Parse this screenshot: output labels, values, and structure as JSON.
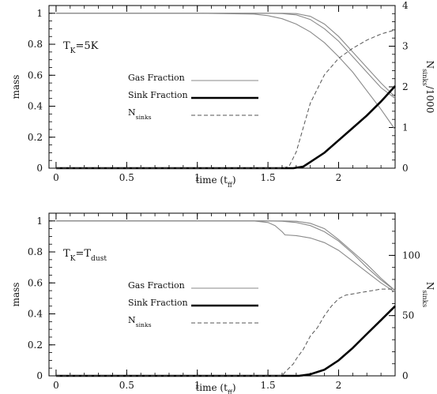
{
  "chart_data": [
    {
      "type": "line",
      "annotation": "T_K=5K",
      "xlabel": "time (t_ff)",
      "ylabel": "mass",
      "y2label": "N_sinks/1000",
      "xlim": [
        -0.05,
        2.4
      ],
      "ylim": [
        0,
        1.05
      ],
      "y2lim": [
        0,
        4
      ],
      "x_ticks": [
        0,
        0.5,
        1,
        1.5,
        2
      ],
      "y_ticks": [
        0,
        0.2,
        0.4,
        0.6,
        0.8,
        1
      ],
      "y2_ticks": [
        0,
        1,
        2,
        3,
        4
      ],
      "legend_position": "center",
      "legend": [
        {
          "label": "Gas Fraction",
          "style": "thin"
        },
        {
          "label": "Sink Fraction",
          "style": "thick"
        },
        {
          "label": "N_sinks",
          "style": "dashed"
        }
      ],
      "series": [
        {
          "style": "thin",
          "axis": "left",
          "x": [
            0,
            1.0,
            1.4,
            1.5,
            1.6,
            1.7,
            1.8,
            1.9,
            2.0,
            2.1,
            2.2,
            2.3,
            2.4
          ],
          "y": [
            1,
            1,
            0.995,
            0.985,
            0.965,
            0.93,
            0.88,
            0.81,
            0.72,
            0.62,
            0.5,
            0.38,
            0.25
          ]
        },
        {
          "style": "thin",
          "axis": "left",
          "x": [
            0,
            1.5,
            1.6,
            1.7,
            1.8,
            1.9,
            2.0,
            2.1,
            2.2,
            2.3,
            2.4
          ],
          "y": [
            1,
            1,
            0.998,
            0.99,
            0.96,
            0.9,
            0.82,
            0.72,
            0.62,
            0.52,
            0.45
          ]
        },
        {
          "style": "thin",
          "axis": "left",
          "x": [
            0,
            1.6,
            1.7,
            1.8,
            1.9,
            2.0,
            2.1,
            2.2,
            2.3,
            2.4
          ],
          "y": [
            1,
            1,
            0.998,
            0.98,
            0.93,
            0.85,
            0.75,
            0.65,
            0.55,
            0.46
          ]
        },
        {
          "style": "thick",
          "axis": "left",
          "x": [
            0,
            1.68,
            1.75,
            1.8,
            1.9,
            2.0,
            2.1,
            2.2,
            2.3,
            2.4
          ],
          "y": [
            0,
            0,
            0.01,
            0.04,
            0.1,
            0.18,
            0.26,
            0.34,
            0.43,
            0.53
          ]
        },
        {
          "style": "dashed",
          "axis": "right",
          "x": [
            0,
            1.6,
            1.65,
            1.7,
            1.75,
            1.8,
            1.9,
            2.0,
            2.1,
            2.2,
            2.3,
            2.4
          ],
          "y": [
            0,
            0,
            0.05,
            0.4,
            1.0,
            1.6,
            2.3,
            2.7,
            2.95,
            3.15,
            3.3,
            3.4
          ]
        }
      ]
    },
    {
      "type": "line",
      "annotation": "T_K=T_dust",
      "xlabel": "time (t_ff)",
      "ylabel": "mass",
      "y2label": "N_sinks",
      "xlim": [
        -0.05,
        2.4
      ],
      "ylim": [
        0,
        1.05
      ],
      "y2lim": [
        0,
        135
      ],
      "x_ticks": [
        0,
        0.5,
        1,
        1.5,
        2
      ],
      "y_ticks": [
        0,
        0.2,
        0.4,
        0.6,
        0.8,
        1
      ],
      "y2_ticks": [
        0,
        50,
        100
      ],
      "legend_position": "center",
      "legend": [
        {
          "label": "Gas Fraction",
          "style": "thin"
        },
        {
          "label": "Sink Fraction",
          "style": "thick"
        },
        {
          "label": "N_sinks",
          "style": "dashed"
        }
      ],
      "series": [
        {
          "style": "thin",
          "axis": "left",
          "x": [
            0,
            1.4,
            1.5,
            1.55,
            1.6,
            1.62,
            1.7,
            1.8,
            1.9,
            2.0,
            2.1,
            2.2,
            2.3,
            2.4
          ],
          "y": [
            1,
            1,
            0.99,
            0.97,
            0.93,
            0.91,
            0.905,
            0.89,
            0.86,
            0.81,
            0.74,
            0.67,
            0.6,
            0.54
          ]
        },
        {
          "style": "thin",
          "axis": "left",
          "x": [
            0,
            1.5,
            1.6,
            1.7,
            1.8,
            1.9,
            2.0,
            2.1,
            2.2,
            2.3,
            2.4
          ],
          "y": [
            1,
            1,
            0.998,
            0.99,
            0.97,
            0.93,
            0.87,
            0.79,
            0.7,
            0.62,
            0.55
          ]
        },
        {
          "style": "thin",
          "axis": "left",
          "x": [
            0,
            1.6,
            1.7,
            1.8,
            1.9,
            2.0,
            2.1,
            2.2,
            2.3,
            2.4
          ],
          "y": [
            1,
            1,
            0.998,
            0.985,
            0.95,
            0.88,
            0.8,
            0.72,
            0.63,
            0.55
          ]
        },
        {
          "style": "thick",
          "axis": "left",
          "x": [
            0,
            1.72,
            1.8,
            1.9,
            2.0,
            2.1,
            2.2,
            2.3,
            2.4
          ],
          "y": [
            0,
            0,
            0.01,
            0.04,
            0.1,
            0.18,
            0.27,
            0.36,
            0.45
          ]
        },
        {
          "style": "dashed",
          "axis": "right",
          "x": [
            0,
            1.6,
            1.62,
            1.68,
            1.7,
            1.75,
            1.8,
            1.85,
            1.9,
            1.95,
            2.0,
            2.05,
            2.1,
            2.2,
            2.3,
            2.4
          ],
          "y": [
            0,
            0,
            3,
            10,
            14,
            22,
            33,
            40,
            50,
            58,
            64,
            67,
            68,
            70,
            72,
            72
          ]
        }
      ]
    }
  ]
}
